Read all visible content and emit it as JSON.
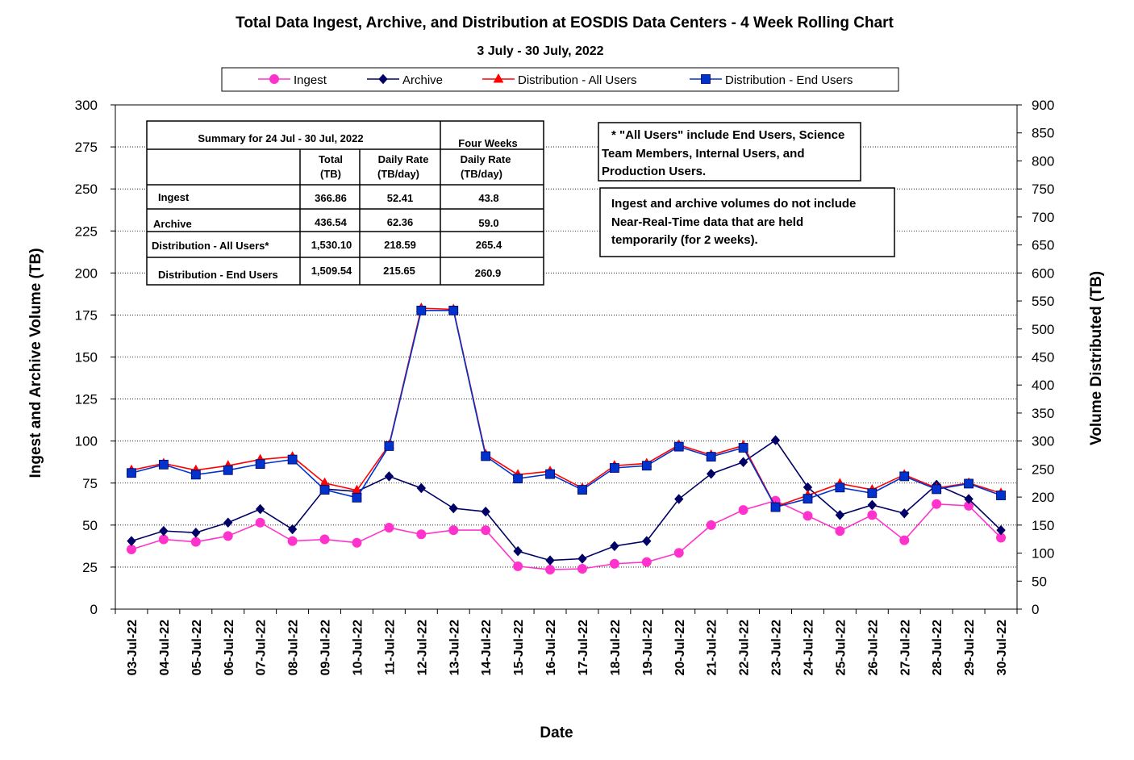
{
  "chart_data": {
    "type": "line",
    "title": "Total Data Ingest, Archive, and  Distribution at EOSDIS Data Centers - 4 Week Rolling Chart",
    "subtitle": "3  July   - 30  July,  2022",
    "xlabel": "Date",
    "ylabel": "Ingest and Archive Volume (TB)",
    "y2label": "Volume Distributed (TB)",
    "ylim": [
      0,
      300
    ],
    "y2lim": [
      0,
      900
    ],
    "yticks": [
      "0",
      "25",
      "50",
      "75",
      "100",
      "125",
      "150",
      "175",
      "200",
      "225",
      "250",
      "275",
      "300"
    ],
    "y2ticks": [
      "0",
      "50",
      "100",
      "150",
      "200",
      "250",
      "300",
      "350",
      "400",
      "450",
      "500",
      "550",
      "600",
      "650",
      "700",
      "750",
      "800",
      "850",
      "900"
    ],
    "grid": true,
    "legend_position": "top",
    "categories": [
      "03-Jul-22",
      "04-Jul-22",
      "05-Jul-22",
      "06-Jul-22",
      "07-Jul-22",
      "08-Jul-22",
      "09-Jul-22",
      "10-Jul-22",
      "11-Jul-22",
      "12-Jul-22",
      "13-Jul-22",
      "14-Jul-22",
      "15-Jul-22",
      "16-Jul-22",
      "17-Jul-22",
      "18-Jul-22",
      "19-Jul-22",
      "20-Jul-22",
      "21-Jul-22",
      "22-Jul-22",
      "23-Jul-22",
      "24-Jul-22",
      "25-Jul-22",
      "26-Jul-22",
      "27-Jul-22",
      "28-Jul-22",
      "29-Jul-22",
      "30-Jul-22"
    ],
    "series": [
      {
        "name": "Ingest",
        "axis": "left",
        "color": "#ff33cc",
        "marker": "circle",
        "values": [
          35.5,
          41.5,
          40,
          43.5,
          51.5,
          40.5,
          41.5,
          39.5,
          48.5,
          44.5,
          47,
          47,
          25.5,
          23.5,
          24,
          27,
          28,
          33.5,
          50,
          59,
          64.5,
          55.5,
          46.5,
          56,
          41,
          62.5,
          61.5,
          42.5
        ]
      },
      {
        "name": "Archive",
        "axis": "left",
        "color": "#000066",
        "marker": "diamond",
        "values": [
          40.5,
          46.5,
          45.5,
          51.5,
          59.5,
          47.5,
          71.5,
          70,
          79,
          72,
          60,
          58,
          34.5,
          29,
          30,
          37.5,
          40.5,
          65.5,
          80.5,
          87.5,
          100.5,
          72.5,
          56,
          62,
          57,
          74,
          65.5,
          47
        ]
      },
      {
        "name": "Distribution - All Users",
        "axis": "right",
        "color": "#ff0000",
        "marker": "triangle",
        "values": [
          248,
          260,
          248,
          256,
          267,
          272,
          225,
          212,
          293,
          537,
          535,
          276,
          240,
          246,
          216,
          256,
          260,
          293,
          275,
          292,
          183,
          203,
          224,
          213,
          240,
          216,
          225,
          207
        ]
      },
      {
        "name": "Distribution - End Users",
        "axis": "right",
        "color": "#0033cc",
        "marker": "square",
        "values": [
          243,
          258,
          240,
          248,
          259,
          267,
          213,
          199,
          291,
          533,
          533,
          273,
          233,
          241,
          213,
          252,
          256,
          290,
          272,
          288,
          182,
          197,
          217,
          207,
          237,
          214,
          224,
          203
        ]
      }
    ],
    "summary_table": {
      "heading": "Summary  for  24  Jul   -  30  Jul,  2022",
      "four_weeks": "Four Weeks",
      "col_total_1": "Total",
      "col_total_2": "(TB)",
      "col_rate_1": "Daily Rate",
      "col_rate_2": "(TB/day)",
      "col_fw_1": "Daily Rate",
      "col_fw_2": "(TB/day)",
      "rows": [
        {
          "label": "Ingest",
          "total": "366.86",
          "rate": "52.41",
          "four": "43.8"
        },
        {
          "label": "Archive",
          "total": "436.54",
          "rate": "62.36",
          "four": "59.0"
        },
        {
          "label": "Distribution - All Users*",
          "total": "1,530.10",
          "rate": "218.59",
          "four": "265.4"
        },
        {
          "label": "Distribution - End Users",
          "total": "1,509.54",
          "rate": "215.65",
          "four": "260.9"
        }
      ]
    },
    "notes": {
      "note1": [
        "* \"All Users\" include End Users, Science",
        "Team Members,  Internal Users, and",
        "Production Users."
      ],
      "note2": [
        "Ingest and archive volumes do not include",
        "Near-Real-Time data that are held",
        "temporarily (for 2 weeks)."
      ]
    }
  }
}
